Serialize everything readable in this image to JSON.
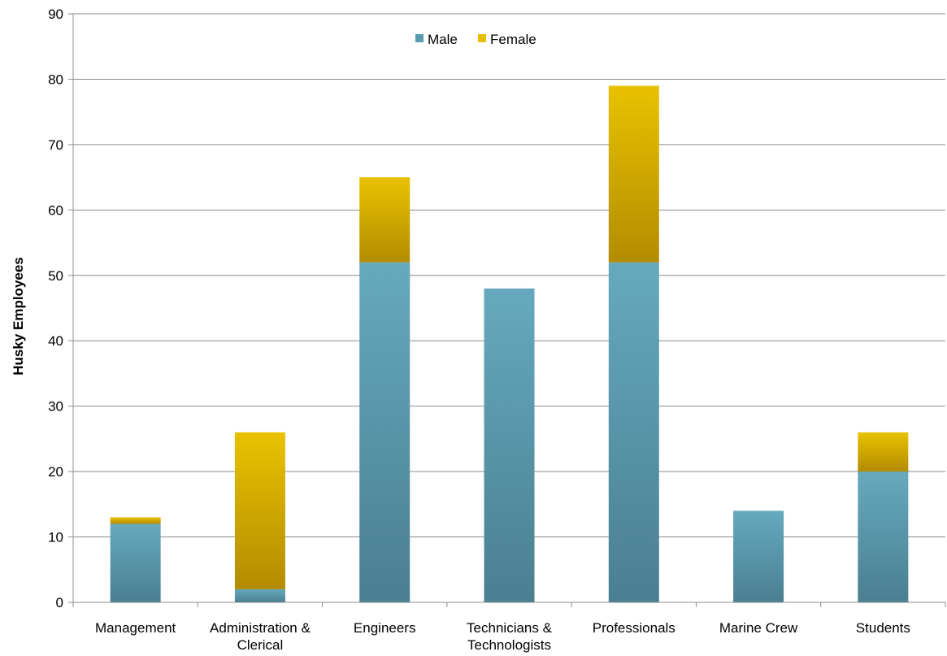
{
  "chart_data": {
    "type": "bar",
    "stacked": true,
    "title": "",
    "xlabel": "",
    "ylabel": "Husky Employees",
    "ylim": [
      0,
      90
    ],
    "yticks": [
      0,
      10,
      20,
      30,
      40,
      50,
      60,
      70,
      80,
      90
    ],
    "grid": true,
    "legend_position": "top-center",
    "categories": [
      [
        "Management"
      ],
      [
        "Administration &",
        "Clerical"
      ],
      [
        "Engineers"
      ],
      [
        "Technicians &",
        "Technologists"
      ],
      [
        "Professionals"
      ],
      [
        "Marine Crew"
      ],
      [
        "Students"
      ]
    ],
    "series": [
      {
        "name": "Male",
        "color": "#5b9bb0",
        "values": [
          12,
          2,
          52,
          48,
          52,
          14,
          20
        ]
      },
      {
        "name": "Female",
        "color": "#e6bd00",
        "values": [
          1,
          24,
          13,
          0,
          27,
          0,
          6
        ]
      }
    ]
  }
}
